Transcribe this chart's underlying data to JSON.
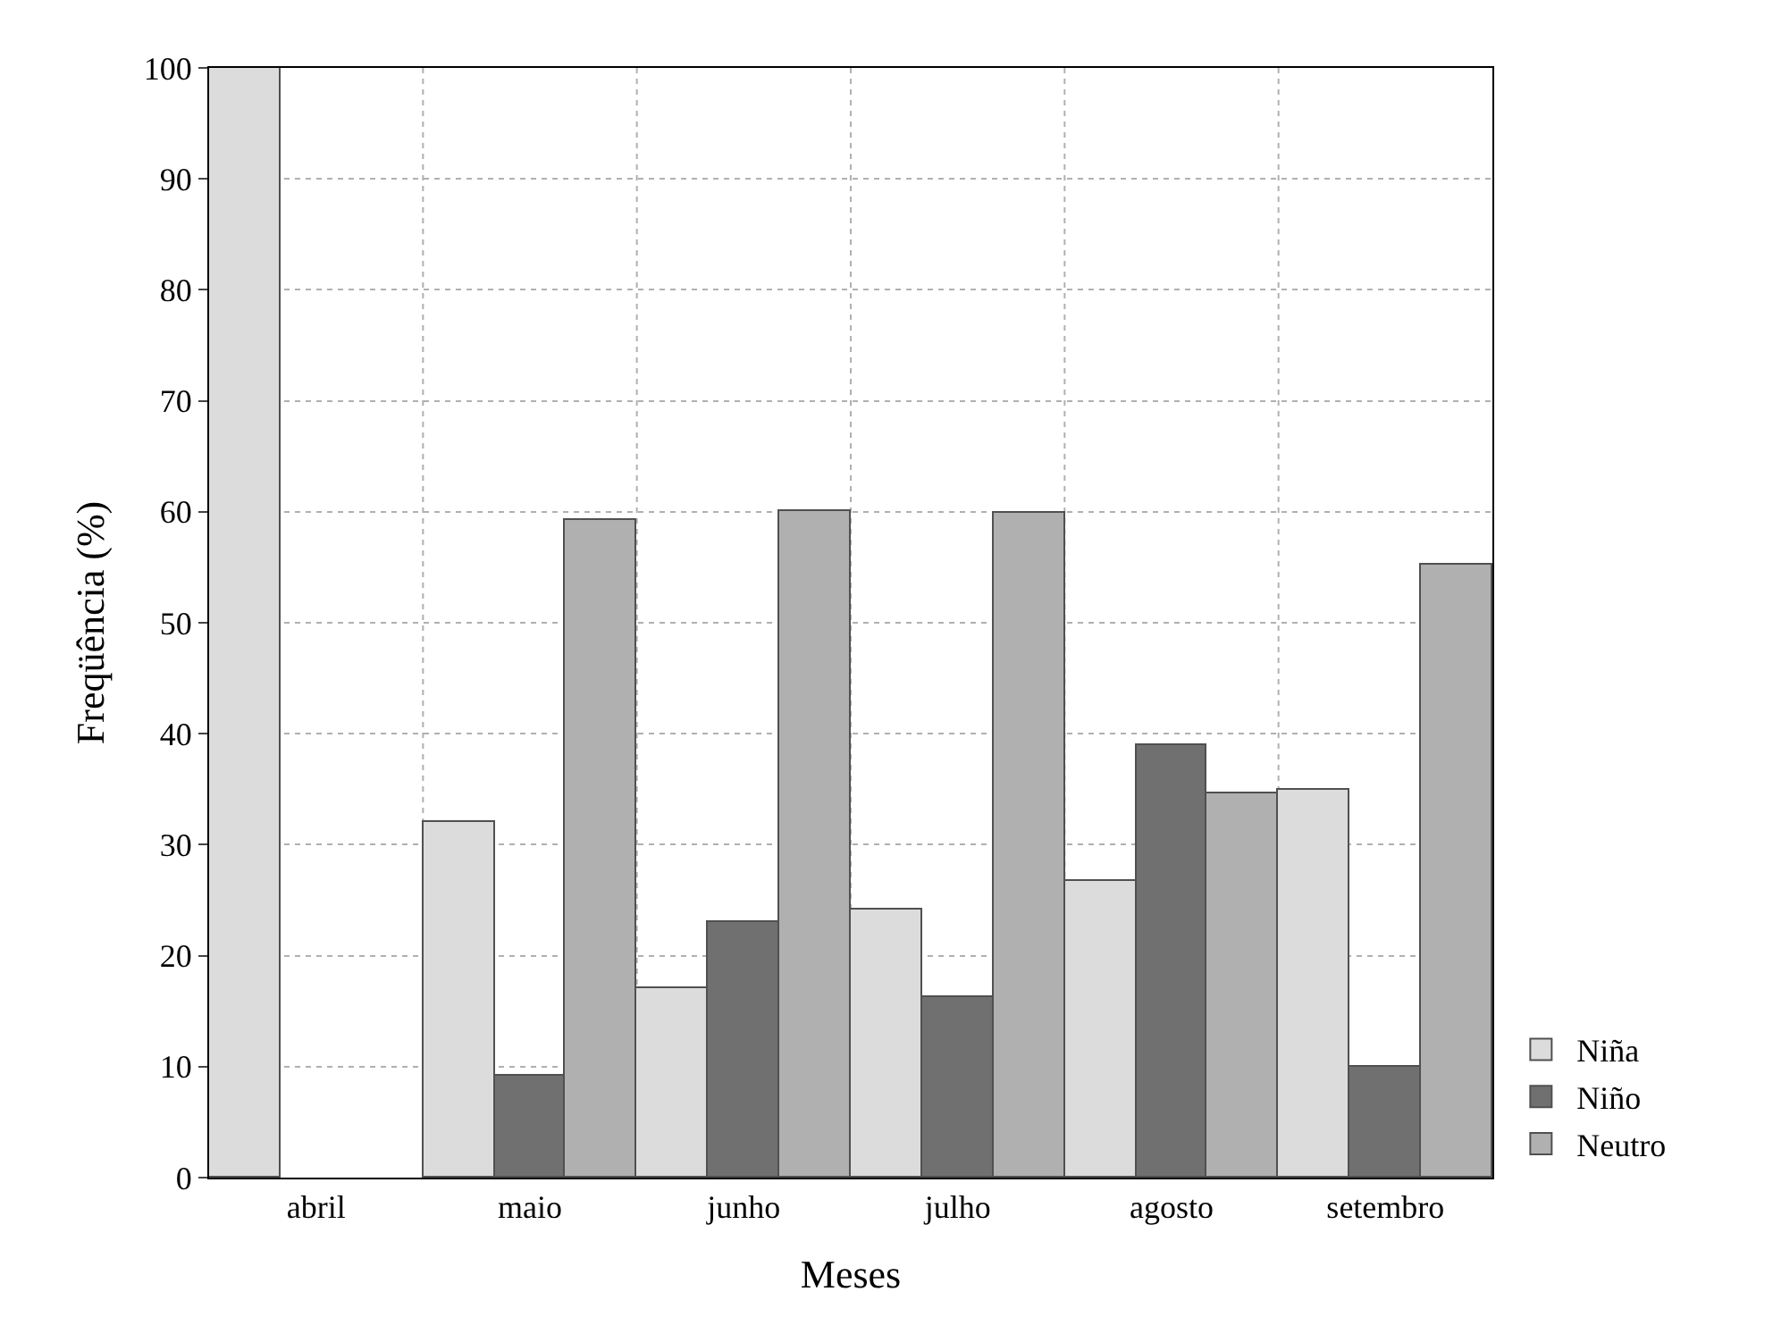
{
  "chart_data": {
    "type": "bar",
    "xlabel": "Meses",
    "ylabel": "Freqüência (%)",
    "categories": [
      "abril",
      "maio",
      "junho",
      "julho",
      "agosto",
      "setembro"
    ],
    "series": [
      {
        "name": "Niña",
        "color": "#dcdcdc",
        "values": [
          100,
          32,
          17.1,
          24.2,
          26.7,
          34.9
        ]
      },
      {
        "name": "Niño",
        "color": "#707070",
        "values": [
          null,
          9.2,
          23,
          16.3,
          39,
          10
        ]
      },
      {
        "name": "Neutro",
        "color": "#b0b0b0",
        "values": [
          null,
          59.3,
          60,
          59.9,
          34.6,
          55.2
        ]
      }
    ],
    "ylim": [
      0,
      100
    ],
    "yticks": [
      0,
      10,
      20,
      30,
      40,
      50,
      60,
      70,
      80,
      90,
      100
    ],
    "grid": true,
    "legend": "bottom right"
  }
}
